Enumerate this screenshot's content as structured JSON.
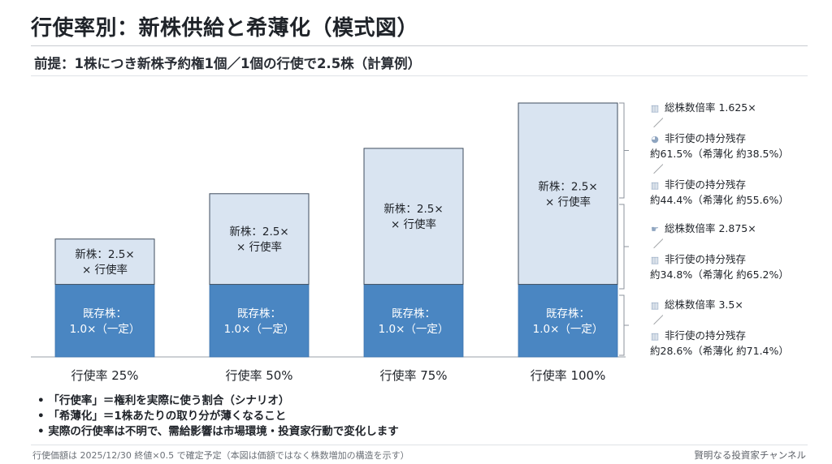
{
  "title": "行使率別：新株供給と希薄化（模式図）",
  "subtitle": "前提：1株につき新株予約権1個／1個の行使で2.5株（計算例）",
  "chart_data": {
    "type": "bar",
    "stacked": true,
    "categories": [
      "行使率 25%",
      "行使率 50%",
      "行使率 75%",
      "行使率 100%"
    ],
    "series": [
      {
        "name": "既存株",
        "values": [
          1.0,
          1.0,
          1.0,
          1.0
        ],
        "color": "#4a86c2",
        "labels": [
          [
            "既存株：",
            "1.0×（一定）"
          ],
          [
            "既存株：",
            "1.0×（一定）"
          ],
          [
            "既存株：",
            "1.0×（一定）"
          ],
          [
            "既存株：",
            "1.0×（一定）"
          ]
        ]
      },
      {
        "name": "新株",
        "values": [
          0.625,
          1.25,
          1.875,
          2.5
        ],
        "color": "#d9e4f1",
        "labels": [
          [
            "新株：2.5×",
            "× 行使率"
          ],
          [
            "新株：2.5×",
            "× 行使率"
          ],
          [
            "新株：2.5×",
            "× 行使率"
          ],
          [
            "新株：2.5×",
            "× 行使率"
          ]
        ]
      }
    ],
    "ylim": [
      0,
      3.5
    ],
    "grid": false
  },
  "legend": {
    "groups": [
      {
        "icon": "bar-chart-icon",
        "lines": [
          "総株数倍率 1.625×",
          "／",
          "非行使の持分残存",
          "約61.5%（希薄化 約38.5%）",
          "／",
          "非行使の持分残存",
          "約44.4%（希薄化 約55.6%）"
        ]
      },
      {
        "icon": "hand-point-icon",
        "lines": [
          "総株数倍率 2.875×",
          "／",
          "非行使の持分残存",
          "約34.8%（希薄化 約65.2%）"
        ]
      },
      {
        "icon": "bar-chart-icon",
        "lines": [
          "総株数倍率 3.5×",
          "／",
          "非行使の持分残存",
          "約28.6%（希薄化 約71.4%）"
        ]
      }
    ]
  },
  "notes": [
    "• 「行使率」＝権利を実際に使う割合（シナリオ）",
    "• 「希薄化」＝1株あたりの取り分が薄くなること",
    "• 実際の行使率は不明で、需給影響は市場環境・投資家行動で変化します"
  ],
  "footnote": "行使価額は 2025/12/30 終値×0.5 で確定予定（本図は価額ではなく株数増加の構造を示す）",
  "brand": "賢明なる投資家チャンネル"
}
